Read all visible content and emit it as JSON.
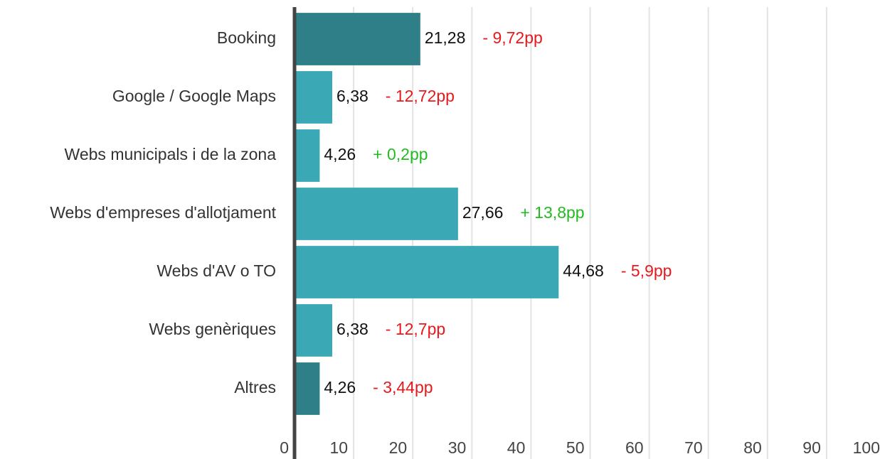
{
  "chart_data": {
    "type": "hbar",
    "categories": [
      "Booking",
      "Google / Google Maps",
      "Webs municipals i de la zona",
      "Webs d'empreses d'allotjament",
      "Webs d'AV o TO",
      "Webs genèriques",
      "Altres"
    ],
    "values": [
      21.28,
      6.38,
      4.26,
      27.66,
      44.68,
      6.38,
      4.26
    ],
    "value_labels": [
      "21,28",
      "6,38",
      "4,26",
      "27,66",
      "44,68",
      "6,38",
      "4,26"
    ],
    "colors": [
      "#2e7f87",
      "#3ba8b5",
      "#3ba8b5",
      "#3ba8b5",
      "#3ba8b5",
      "#3ba8b5",
      "#2e7f87"
    ],
    "annotations": [
      "- 9,72pp",
      "- 12,72pp",
      "+ 0,2pp",
      "+ 13,8pp",
      "- 5,9pp",
      "- 12,7pp",
      "- 3,44pp"
    ],
    "annotation_colors": [
      "#e8191c",
      "#e8191c",
      "#22bb22",
      "#22bb22",
      "#e8191c",
      "#e8191c",
      "#e8191c"
    ],
    "xlim": [
      0,
      100
    ],
    "xticks": [
      0,
      10,
      20,
      30,
      40,
      50,
      60,
      70,
      80,
      90,
      100
    ],
    "grid": true
  }
}
